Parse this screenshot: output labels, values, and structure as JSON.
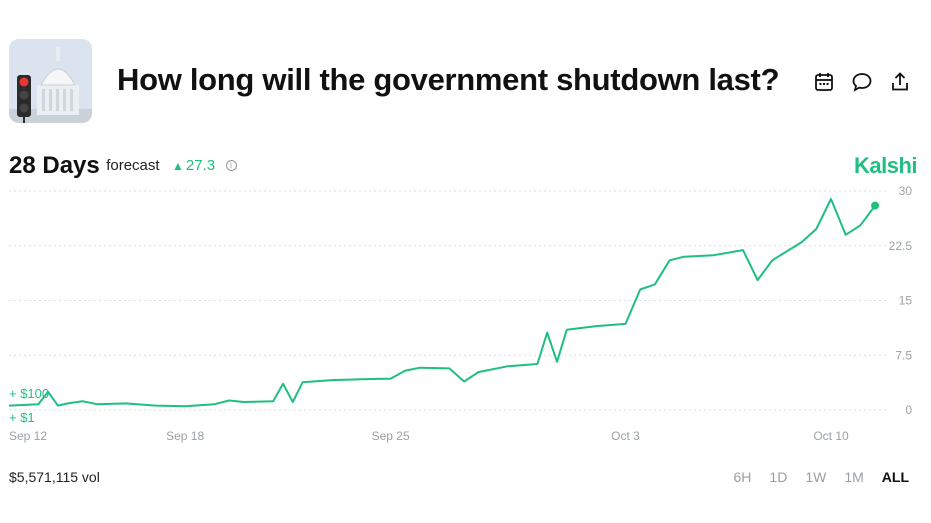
{
  "market": {
    "title": "How long will the government shutdown last?",
    "headline_value": "28 Days",
    "headline_suffix": "forecast",
    "delta": "27.3",
    "brand": "Kalshi",
    "volume": "$5,571,115 vol"
  },
  "toolbar_icons": [
    "calendar-icon",
    "comment-icon",
    "share-icon"
  ],
  "range_buttons": [
    "6H",
    "1D",
    "1W",
    "1M",
    "ALL"
  ],
  "active_range": "ALL",
  "colors": {
    "accent": "#1fbf7f",
    "grid": "#d9dde1",
    "muted": "#9aa0a6"
  },
  "chart_data": {
    "type": "line",
    "ylim": [
      0,
      30
    ],
    "yticks": [
      "0",
      "7.5",
      "15",
      "22.5",
      "30"
    ],
    "ytick_values": [
      0,
      7.5,
      15,
      22.5,
      30
    ],
    "x_ticks": [
      "Sep 12",
      "Sep 18",
      "Sep 25",
      "Oct 3",
      "Oct 10"
    ],
    "x_tick_values": [
      "2025-09-12",
      "2025-09-18",
      "2025-09-25",
      "2025-10-03",
      "2025-10-10"
    ],
    "y_axis_side": "right",
    "grid": true,
    "series_labels": [
      "+ $100",
      "+ $1"
    ],
    "series": [
      {
        "color": "#1fbf7f",
        "points": [
          [
            "2025-09-12",
            0.6
          ],
          [
            "2025-09-13",
            0.8
          ],
          [
            "2025-09-13",
            2.5
          ],
          [
            "2025-09-13",
            0.6
          ],
          [
            "2025-09-14",
            0.9
          ],
          [
            "2025-09-14",
            1.2
          ],
          [
            "2025-09-15",
            0.8
          ],
          [
            "2025-09-16",
            0.9
          ],
          [
            "2025-09-17",
            0.6
          ],
          [
            "2025-09-18",
            0.5
          ],
          [
            "2025-09-19",
            0.8
          ],
          [
            "2025-09-19",
            1.3
          ],
          [
            "2025-09-20",
            1.1
          ],
          [
            "2025-09-21",
            1.2
          ],
          [
            "2025-09-21",
            3.6
          ],
          [
            "2025-09-21",
            1.1
          ],
          [
            "2025-09-22",
            3.8
          ],
          [
            "2025-09-23",
            4.1
          ],
          [
            "2025-09-24",
            4.2
          ],
          [
            "2025-09-25",
            4.3
          ],
          [
            "2025-09-25",
            5.4
          ],
          [
            "2025-09-26",
            5.8
          ],
          [
            "2025-09-27",
            5.7
          ],
          [
            "2025-09-27",
            3.9
          ],
          [
            "2025-09-28",
            5.2
          ],
          [
            "2025-09-29",
            6.0
          ],
          [
            "2025-09-30",
            6.3
          ],
          [
            "2025-09-30",
            10.6
          ],
          [
            "2025-09-30",
            6.6
          ],
          [
            "2025-10-01",
            11.0
          ],
          [
            "2025-10-02",
            11.5
          ],
          [
            "2025-10-03",
            11.8
          ],
          [
            "2025-10-03",
            16.5
          ],
          [
            "2025-10-04",
            17.2
          ],
          [
            "2025-10-04",
            20.5
          ],
          [
            "2025-10-05",
            21.0
          ],
          [
            "2025-10-06",
            21.2
          ],
          [
            "2025-10-07",
            21.9
          ],
          [
            "2025-10-07",
            17.8
          ],
          [
            "2025-10-08",
            20.5
          ],
          [
            "2025-10-09",
            23.0
          ],
          [
            "2025-10-09",
            24.8
          ],
          [
            "2025-10-10",
            28.9
          ],
          [
            "2025-10-10",
            24.0
          ],
          [
            "2025-10-11",
            25.3
          ],
          [
            "2025-10-11",
            28.0
          ]
        ]
      }
    ],
    "last_point": [
      "2025-10-11",
      28.0
    ]
  }
}
